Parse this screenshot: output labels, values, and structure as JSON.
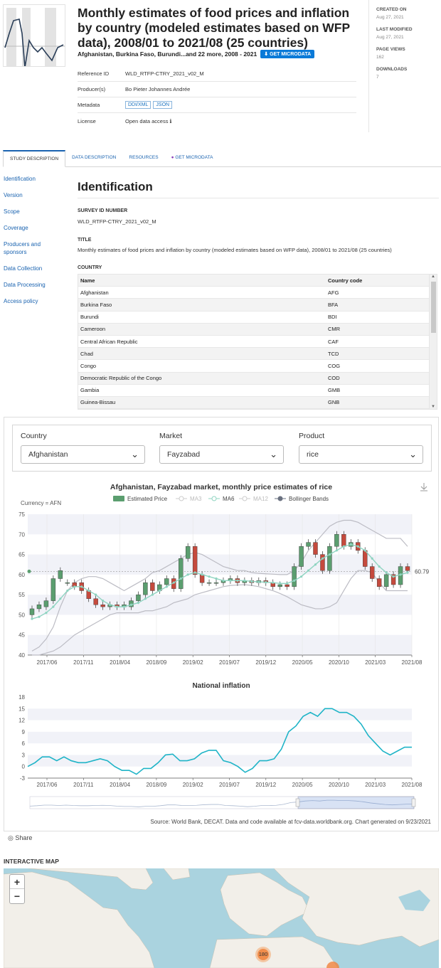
{
  "header": {
    "title": "Monthly estimates of food prices and inflation by country (modeled estimates based on WFP data), 2008/01 to 2021/08 (25 countries)",
    "subtitle": "Afghanistan, Burkina Faso, Burundi...and 22 more, 2008 - 2021",
    "get_microdata": "GET MICRODATA"
  },
  "meta_rows": [
    {
      "key": "Reference ID",
      "value": "WLD_RTFP-CTRY_2021_v02_M"
    },
    {
      "key": "Producer(s)",
      "value": "Bo Pieter Johannes Andrée"
    },
    {
      "key": "Metadata",
      "badges": [
        "DDI/XML",
        "JSON"
      ]
    },
    {
      "key": "License",
      "value": "Open data access ℹ"
    }
  ],
  "side": {
    "created_label": "CREATED ON",
    "created": "Aug 27, 2021",
    "modified_label": "LAST MODIFIED",
    "modified": "Aug 27, 2021",
    "views_label": "PAGE VIEWS",
    "views": "162",
    "downloads_label": "DOWNLOADS",
    "downloads": "7"
  },
  "tabs": [
    "STUDY DESCRIPTION",
    "DATA DESCRIPTION",
    "RESOURCES",
    "GET MICRODATA"
  ],
  "nav": [
    "Identification",
    "Version",
    "Scope",
    "Coverage",
    "Producers and sponsors",
    "Data Collection",
    "Data Processing",
    "Access policy"
  ],
  "identification": {
    "heading": "Identification",
    "survey_label": "SURVEY ID NUMBER",
    "survey_value": "WLD_RTFP-CTRY_2021_v02_M",
    "title_label": "TITLE",
    "title_value": "Monthly estimates of food prices and inflation by country (modeled estimates based on WFP data), 2008/01 to 2021/08 (25 countries)",
    "country_label": "COUNTRY",
    "table_headers": [
      "Name",
      "Country code"
    ],
    "countries": [
      [
        "Afghanistan",
        "AFG"
      ],
      [
        "Burkina Faso",
        "BFA"
      ],
      [
        "Burundi",
        "BDI"
      ],
      [
        "Cameroon",
        "CMR"
      ],
      [
        "Central African Republic",
        "CAF"
      ],
      [
        "Chad",
        "TCD"
      ],
      [
        "Congo",
        "COG"
      ],
      [
        "Democratic Republic of the Congo",
        "COD"
      ],
      [
        "Gambia",
        "GMB"
      ],
      [
        "Guinea-Bissau",
        "GNB"
      ]
    ]
  },
  "filters": {
    "country_label": "Country",
    "country_value": "Afghanistan",
    "market_label": "Market",
    "market_value": "Fayzabad",
    "product_label": "Product",
    "product_value": "rice"
  },
  "chart_data": [
    {
      "type": "line",
      "title": "Afghanistan, Fayzabad market, monthly price estimates of rice",
      "currency_label": "Currency = AFN",
      "legend": [
        "Estimated Price",
        "MA3",
        "MA6",
        "MA12",
        "Bollinger Bands"
      ],
      "ylim": [
        40,
        75
      ],
      "yticks": [
        40,
        45,
        50,
        55,
        60,
        65,
        70,
        75
      ],
      "xticks": [
        "2017/06",
        "2017/11",
        "2018/04",
        "2018/09",
        "2019/02",
        "2019/07",
        "2019/12",
        "2020/05",
        "2020/10",
        "2021/03",
        "2021/08"
      ],
      "last_value": "60.79",
      "n": 53,
      "candles": [
        [
          50,
          51.5
        ],
        [
          51.5,
          52.5
        ],
        [
          52,
          53.5
        ],
        [
          53.5,
          59
        ],
        [
          59,
          61
        ],
        [
          58,
          58
        ],
        [
          58,
          57
        ],
        [
          58,
          56
        ],
        [
          56,
          54
        ],
        [
          54,
          52.5
        ],
        [
          52.5,
          52
        ],
        [
          52,
          52.5
        ],
        [
          52.5,
          52
        ],
        [
          52,
          52.5
        ],
        [
          52,
          53.5
        ],
        [
          53.5,
          55
        ],
        [
          55,
          58
        ],
        [
          58,
          56
        ],
        [
          56,
          57.5
        ],
        [
          57.5,
          59
        ],
        [
          59,
          56.5
        ],
        [
          56.5,
          64
        ],
        [
          64,
          67
        ],
        [
          67,
          60
        ],
        [
          60,
          58
        ],
        [
          58,
          58
        ],
        [
          58,
          58
        ],
        [
          58,
          58.5
        ],
        [
          58.5,
          59
        ],
        [
          59,
          58
        ],
        [
          58,
          58.5
        ],
        [
          58.5,
          58
        ],
        [
          58,
          58.5
        ],
        [
          58.5,
          58
        ],
        [
          58,
          57
        ],
        [
          57,
          57.5
        ],
        [
          57.5,
          57
        ],
        [
          57,
          62
        ],
        [
          62,
          67
        ],
        [
          67,
          68
        ],
        [
          68,
          65
        ],
        [
          65,
          61
        ],
        [
          61,
          67
        ],
        [
          67,
          70
        ],
        [
          70,
          67
        ],
        [
          67,
          68
        ],
        [
          68,
          66
        ],
        [
          66,
          62
        ],
        [
          62,
          59
        ],
        [
          59,
          57
        ],
        [
          57,
          60
        ],
        [
          60,
          57.5
        ],
        [
          57.5,
          62
        ],
        [
          62,
          61
        ]
      ],
      "ma6": [
        49,
        49.5,
        50.5,
        52,
        54,
        56,
        57,
        57,
        56,
        55,
        53.5,
        52.5,
        52,
        52,
        52.5,
        53,
        54,
        55,
        56,
        57,
        58,
        59,
        60,
        60.5,
        60,
        59.5,
        59,
        58.5,
        58.5,
        58.5,
        58.5,
        58.3,
        58.2,
        58.1,
        58,
        57.8,
        57.8,
        58.5,
        59.5,
        61,
        62.5,
        64,
        65,
        66,
        67,
        67.5,
        67,
        66,
        64,
        62,
        60.5,
        59.5,
        60,
        60.5
      ],
      "upper": [
        41,
        42,
        44,
        47,
        52,
        56,
        58,
        59,
        59.5,
        59.5,
        59,
        58,
        57,
        56,
        57,
        58,
        59,
        60.5,
        61,
        62,
        63,
        64,
        65,
        65.5,
        65,
        64,
        63,
        62,
        61.5,
        61,
        61,
        60.5,
        60.3,
        60.2,
        60.1,
        60,
        60,
        61,
        63,
        66,
        68,
        70,
        72,
        73,
        73.5,
        73.5,
        73,
        72,
        71,
        70,
        69,
        69,
        69,
        67
      ],
      "lower": [
        40,
        40,
        40.5,
        41,
        42,
        43.5,
        45,
        46,
        47,
        48,
        49,
        50,
        50.5,
        50.5,
        50.5,
        50.5,
        51,
        51,
        51.5,
        52,
        53,
        53.5,
        54,
        55,
        55.5,
        56,
        56.5,
        57,
        57.3,
        57.4,
        57.5,
        57.3,
        57,
        56.5,
        56,
        55.3,
        54.5,
        53.5,
        52.5,
        52,
        51.5,
        51.5,
        52,
        53,
        56,
        59,
        61,
        61,
        60.5,
        58,
        56,
        56,
        56,
        56
      ]
    },
    {
      "type": "line",
      "title": "National inflation",
      "ylim": [
        -3,
        18
      ],
      "yticks": [
        -3,
        0,
        3,
        6,
        9,
        12,
        15,
        18
      ],
      "xticks": [
        "2017/06",
        "2017/11",
        "2018/04",
        "2018/09",
        "2019/02",
        "2019/07",
        "2019/12",
        "2020/05",
        "2020/10",
        "2021/03",
        "2021/08"
      ],
      "values": [
        0,
        1,
        2.5,
        2.5,
        1.5,
        2.5,
        1.5,
        1,
        1,
        1.5,
        2,
        1.5,
        0,
        -1,
        -1,
        -2,
        -0.5,
        -0.5,
        1,
        3,
        3.2,
        1.5,
        1.5,
        2,
        3.5,
        4.2,
        4.2,
        1.5,
        1,
        0,
        -1.5,
        -0.5,
        1.5,
        1.5,
        2,
        4.5,
        9,
        10.5,
        13,
        14,
        13,
        15,
        15,
        14,
        14,
        13,
        11,
        8,
        6,
        4,
        3,
        4,
        5,
        5
      ],
      "source": "Source: World Bank, DECAT. Data and code available at fcv-data.worldbank.org. Chart generated on 9/23/2021"
    }
  ],
  "share": "Share",
  "map": {
    "title": "INTERACTIVE MAP",
    "zoom_in": "+",
    "zoom_out": "−",
    "cluster_count": "180"
  },
  "colors": {
    "up": "#5b9e6f",
    "down": "#c54a3d",
    "ma6": "#8fd4c1",
    "bands": "#bcbcc4",
    "inflation": "#1fb4c7",
    "link": "#1a63b0"
  }
}
